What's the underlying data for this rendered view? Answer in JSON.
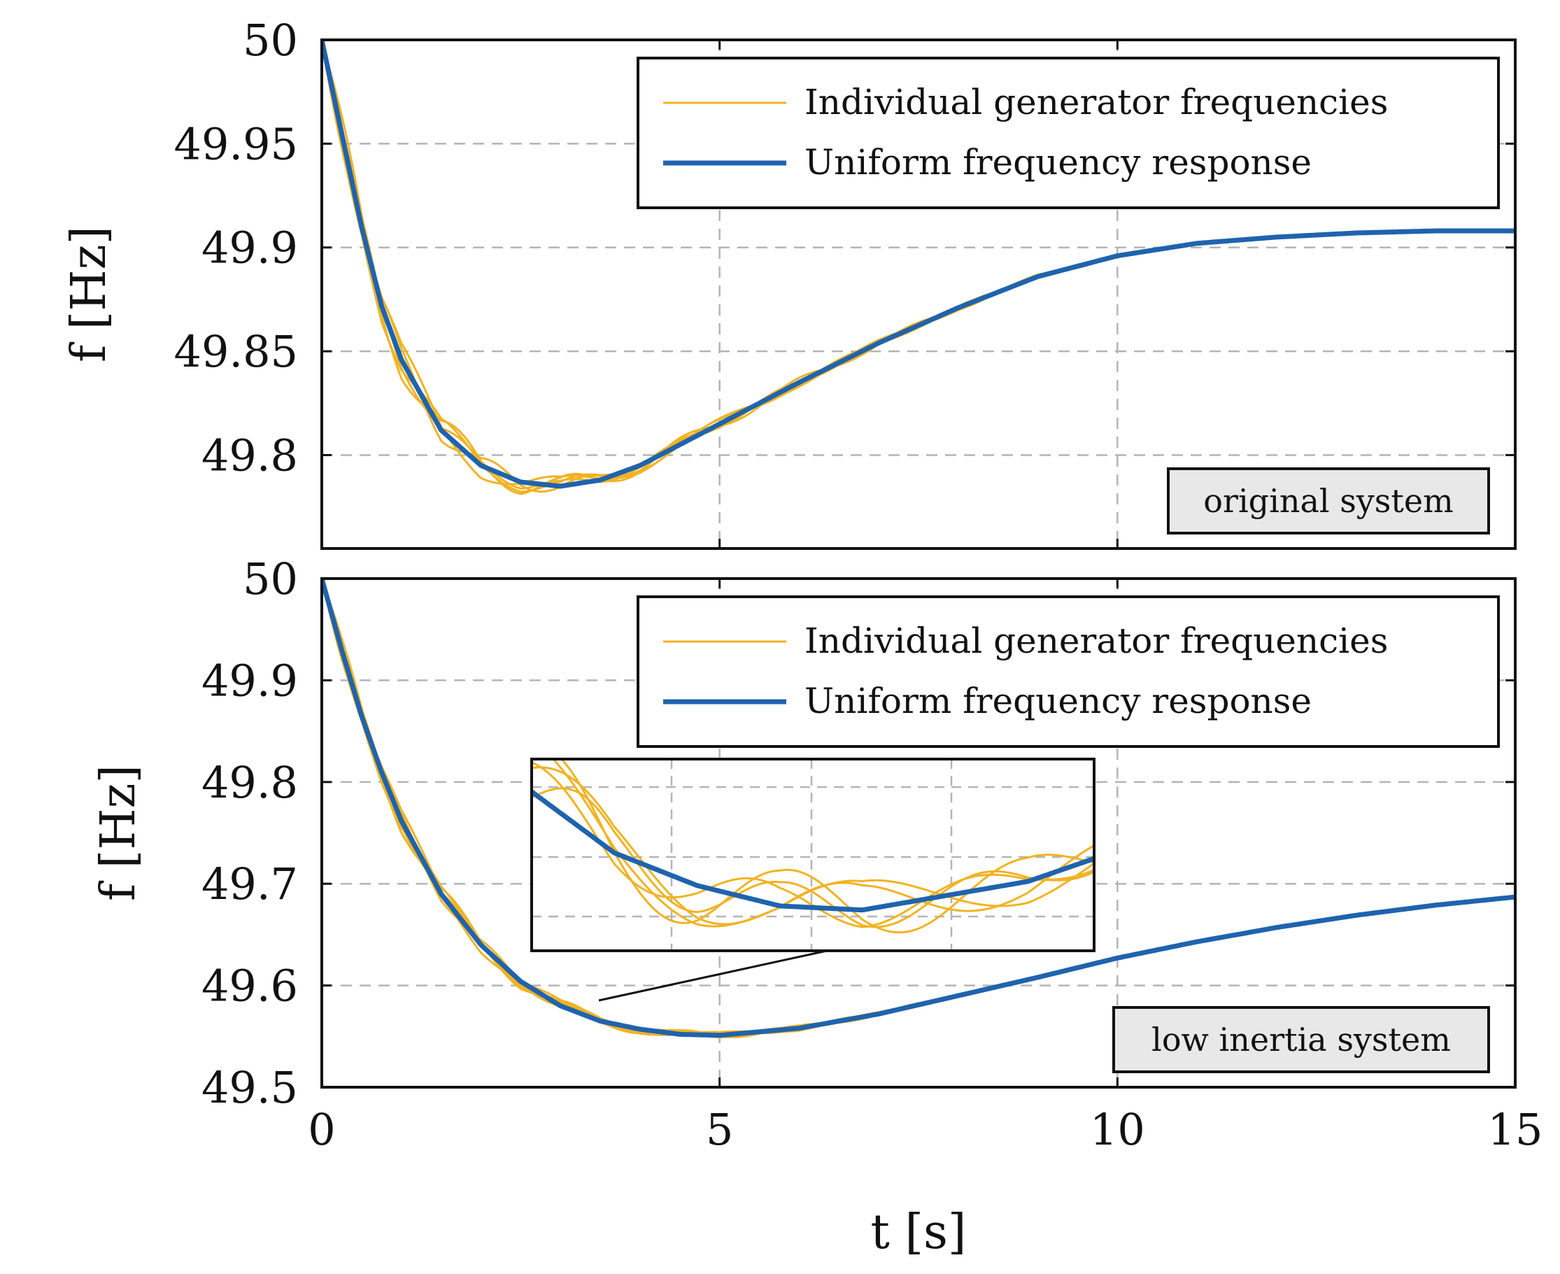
{
  "chart_data": [
    {
      "type": "line",
      "panel": "top",
      "ylabel": "f [Hz]",
      "xlabel": "",
      "xlim": [
        0,
        15
      ],
      "ylim": [
        49.755,
        50
      ],
      "yticks": [
        "49.8",
        "49.85",
        "49.9",
        "49.95",
        "50"
      ],
      "ytick_values": [
        49.8,
        49.85,
        49.9,
        49.95,
        50
      ],
      "xticks": [
        0,
        5,
        10,
        15
      ],
      "grid": true,
      "legend": [
        "Individual generator frequencies",
        "Uniform frequency response"
      ],
      "legend_position": "top-right",
      "annotation": "original system",
      "series": [
        {
          "name": "Uniform frequency response",
          "color": "#1f63ae",
          "x": [
            0,
            0.25,
            0.5,
            0.75,
            1.0,
            1.5,
            2.0,
            2.5,
            3.0,
            3.5,
            4.0,
            4.5,
            5.0,
            6.0,
            7.0,
            8.0,
            9.0,
            10.0,
            11.0,
            12.0,
            13.0,
            14.0,
            15.0
          ],
          "y": [
            50.0,
            49.955,
            49.91,
            49.872,
            49.846,
            49.812,
            49.795,
            49.787,
            49.785,
            49.788,
            49.795,
            49.805,
            49.815,
            49.835,
            49.854,
            49.871,
            49.886,
            49.896,
            49.902,
            49.905,
            49.907,
            49.908,
            49.908
          ]
        },
        {
          "name": "Individual generator frequencies",
          "color": "#f0b323",
          "count": 5,
          "oscillation_amplitude": 0.012,
          "oscillation_decay": 0.28
        }
      ]
    },
    {
      "type": "line",
      "panel": "bottom",
      "ylabel": "f [Hz]",
      "xlabel": "t [s]",
      "xlim": [
        0,
        15
      ],
      "ylim": [
        49.5,
        50
      ],
      "yticks": [
        "49.5",
        "49.6",
        "49.7",
        "49.8",
        "49.9",
        "50"
      ],
      "ytick_values": [
        49.5,
        49.6,
        49.7,
        49.8,
        49.9,
        50
      ],
      "xticks": [
        0,
        5,
        10,
        15
      ],
      "xtick_labels": [
        "0",
        "5",
        "10",
        "15"
      ],
      "grid": true,
      "legend": [
        "Individual generator frequencies",
        "Uniform frequency response"
      ],
      "legend_position": "top-right",
      "annotation": "low inertia system",
      "inset": "zoom of the oscillations near the local minimum",
      "series": [
        {
          "name": "Uniform frequency response",
          "color": "#1f63ae",
          "x": [
            0,
            0.25,
            0.5,
            0.75,
            1.0,
            1.5,
            2.0,
            2.5,
            3.0,
            3.5,
            4.0,
            4.5,
            5.0,
            6.0,
            7.0,
            8.0,
            9.0,
            10.0,
            11.0,
            12.0,
            13.0,
            14.0,
            15.0
          ],
          "y": [
            50.0,
            49.93,
            49.865,
            49.81,
            49.762,
            49.69,
            49.64,
            49.604,
            49.58,
            49.565,
            49.557,
            49.552,
            49.551,
            49.558,
            49.572,
            49.59,
            49.608,
            49.627,
            49.643,
            49.657,
            49.669,
            49.679,
            49.687
          ]
        },
        {
          "name": "Individual generator frequencies",
          "color": "#f0b323",
          "count": 5,
          "oscillation_amplitude": 0.016,
          "oscillation_decay": 0.3
        }
      ]
    }
  ]
}
